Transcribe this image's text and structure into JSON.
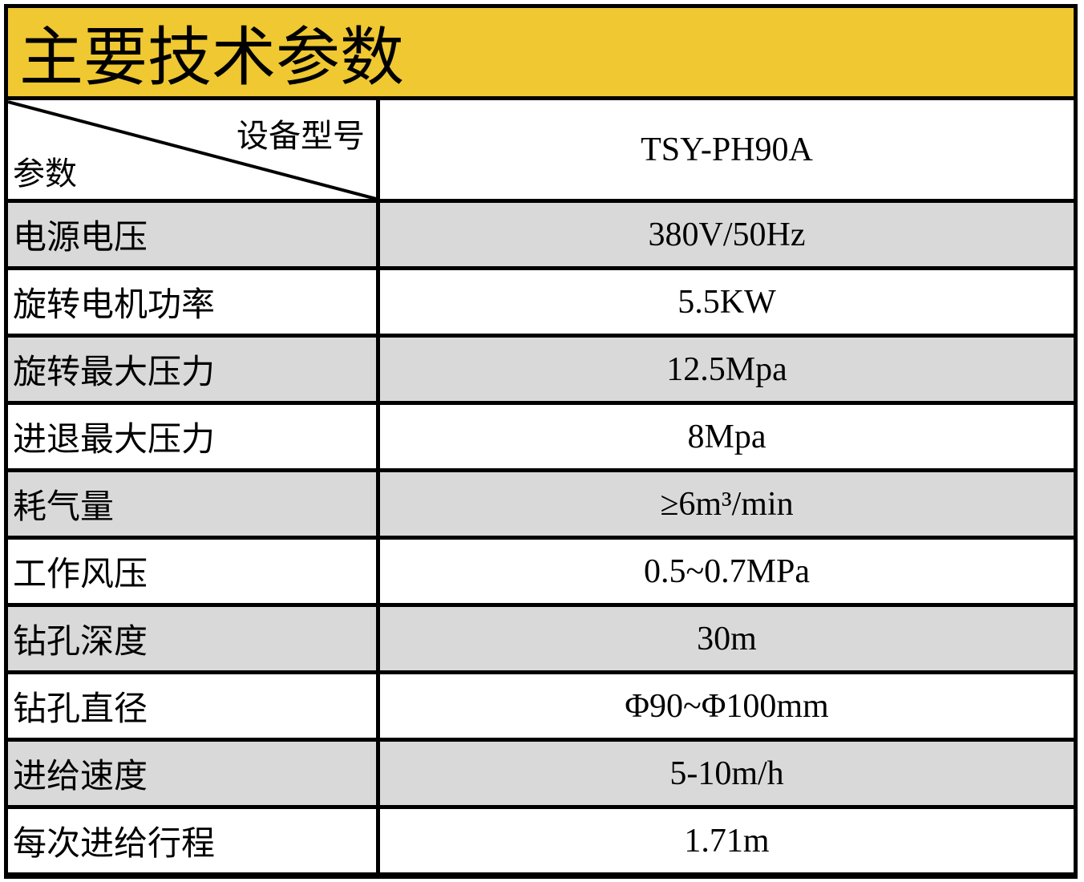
{
  "title": "主要技术参数",
  "header": {
    "model_label": "设备型号",
    "param_label": "参数",
    "model": "TSY-PH90A"
  },
  "rows": [
    {
      "label": "电源电压",
      "value": "380V/50Hz"
    },
    {
      "label": "旋转电机功率",
      "value": "5.5KW"
    },
    {
      "label": "旋转最大压力",
      "value": "12.5Mpa"
    },
    {
      "label": "进退最大压力",
      "value": "8Mpa"
    },
    {
      "label": "耗气量",
      "value": "≥6m³/min"
    },
    {
      "label": "工作风压",
      "value": "0.5~0.7MPa"
    },
    {
      "label": "钻孔深度",
      "value": "30m"
    },
    {
      "label": "钻孔直径",
      "value": "Φ90~Φ100mm"
    },
    {
      "label": "进给速度",
      "value": "5-10m/h"
    },
    {
      "label": "每次进给行程",
      "value": "1.71m"
    }
  ],
  "colors": {
    "title_bg": "#efc832",
    "alt_row_bg": "#d9d9d9"
  }
}
